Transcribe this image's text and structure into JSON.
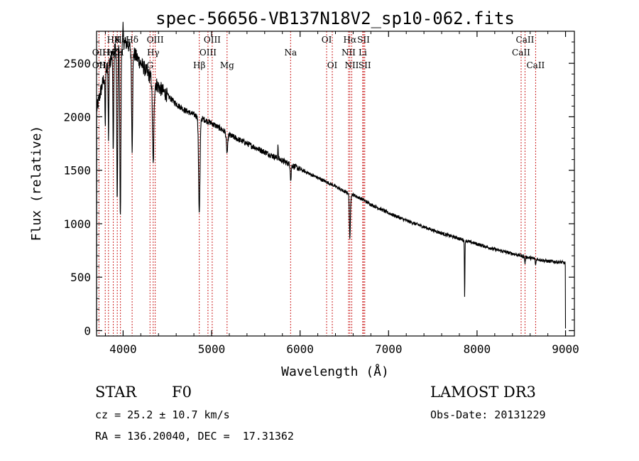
{
  "chart_data": {
    "type": "line",
    "title": "spec-56656-VB137N18V2_sp10-062.fits",
    "xlabel": "Wavelength (Å)",
    "ylabel": "Flux (relative)",
    "xlim": [
      3700,
      9100
    ],
    "ylim": [
      -50,
      2800
    ],
    "xticks": [
      4000,
      5000,
      6000,
      7000,
      8000,
      9000
    ],
    "yticks": [
      0,
      500,
      1000,
      1500,
      2000,
      2500
    ],
    "xtick_labels": [
      "4000",
      "5000",
      "6000",
      "7000",
      "8000",
      "9000"
    ],
    "ytick_labels": [
      "0",
      "500",
      "1000",
      "1500",
      "2000",
      "2500"
    ],
    "line_color": "#000000",
    "marker_color": "#cc2222",
    "continuum": [
      [
        3700,
        2060
      ],
      [
        3750,
        2250
      ],
      [
        3800,
        2420
      ],
      [
        3850,
        2540
      ],
      [
        3900,
        2620
      ],
      [
        3950,
        2680
      ],
      [
        4000,
        2700
      ],
      [
        4050,
        2680
      ],
      [
        4100,
        2620
      ],
      [
        4150,
        2560
      ],
      [
        4200,
        2500
      ],
      [
        4300,
        2380
      ],
      [
        4400,
        2280
      ],
      [
        4500,
        2200
      ],
      [
        4600,
        2120
      ],
      [
        4700,
        2060
      ],
      [
        4800,
        2020
      ],
      [
        4900,
        1980
      ],
      [
        5000,
        1940
      ],
      [
        5100,
        1890
      ],
      [
        5200,
        1830
      ],
      [
        5300,
        1790
      ],
      [
        5400,
        1750
      ],
      [
        5500,
        1710
      ],
      [
        5600,
        1670
      ],
      [
        5700,
        1630
      ],
      [
        5800,
        1590
      ],
      [
        5900,
        1550
      ],
      [
        6000,
        1510
      ],
      [
        6100,
        1470
      ],
      [
        6200,
        1430
      ],
      [
        6300,
        1390
      ],
      [
        6400,
        1350
      ],
      [
        6500,
        1300
      ],
      [
        6600,
        1270
      ],
      [
        6700,
        1230
      ],
      [
        6800,
        1180
      ],
      [
        6900,
        1140
      ],
      [
        7000,
        1100
      ],
      [
        7200,
        1030
      ],
      [
        7400,
        970
      ],
      [
        7600,
        910
      ],
      [
        7800,
        860
      ],
      [
        8000,
        810
      ],
      [
        8200,
        760
      ],
      [
        8400,
        720
      ],
      [
        8600,
        680
      ],
      [
        8800,
        650
      ],
      [
        8950,
        640
      ],
      [
        9000,
        630
      ]
    ],
    "absorption_lines": [
      {
        "center": 3934,
        "depth": 1450,
        "width": 6
      },
      {
        "center": 3969,
        "depth": 1650,
        "width": 6
      },
      {
        "center": 3889,
        "depth": 900,
        "width": 5
      },
      {
        "center": 3835,
        "depth": 700,
        "width": 4
      },
      {
        "center": 3798,
        "depth": 500,
        "width": 4
      },
      {
        "center": 4102,
        "depth": 900,
        "width": 6
      },
      {
        "center": 4340,
        "depth": 800,
        "width": 8
      },
      {
        "center": 4861,
        "depth": 900,
        "width": 8
      },
      {
        "center": 5175,
        "depth": 180,
        "width": 8
      },
      {
        "center": 5895,
        "depth": 150,
        "width": 5
      },
      {
        "center": 6563,
        "depth": 420,
        "width": 6
      },
      {
        "center": 7860,
        "depth": 520,
        "width": 3
      },
      {
        "center": 8542,
        "depth": 60,
        "width": 4
      },
      {
        "center": 8662,
        "depth": 60,
        "width": 4
      }
    ],
    "emission_spikes": [
      {
        "center": 4000,
        "height": 120,
        "width": 3
      },
      {
        "center": 5750,
        "height": 160,
        "width": 2
      }
    ],
    "spectral_lines": [
      {
        "label": "H8",
        "wavelength": 3889,
        "tier": 0
      },
      {
        "label": "K",
        "wavelength": 3934,
        "tier": 0
      },
      {
        "label": "Hε",
        "wavelength": 3970,
        "tier": 0
      },
      {
        "label": "Hδ",
        "wavelength": 4102,
        "tier": 0
      },
      {
        "label": "OIII",
        "wavelength": 4363,
        "tier": 0
      },
      {
        "label": "OIII",
        "wavelength": 5007,
        "tier": 0
      },
      {
        "label": "OI",
        "wavelength": 6300,
        "tier": 0
      },
      {
        "label": "Hα",
        "wavelength": 6563,
        "tier": 0
      },
      {
        "label": "SII",
        "wavelength": 6717,
        "tier": 0
      },
      {
        "label": "CaII",
        "wavelength": 8542,
        "tier": 0
      },
      {
        "label": "OII",
        "wavelength": 3727,
        "tier": 1
      },
      {
        "label": "Hη",
        "wavelength": 3835,
        "tier": 1
      },
      {
        "label": "Hζ",
        "wavelength": 3889,
        "tier": 1
      },
      {
        "label": "Ca",
        "wavelength": 3934,
        "tier": 1
      },
      {
        "label": "H",
        "wavelength": 3969,
        "tier": 1
      },
      {
        "label": "Hγ",
        "wavelength": 4340,
        "tier": 1
      },
      {
        "label": "OIII",
        "wavelength": 4959,
        "tier": 1
      },
      {
        "label": "Na",
        "wavelength": 5893,
        "tier": 1
      },
      {
        "label": "NII",
        "wavelength": 6548,
        "tier": 1
      },
      {
        "label": "Li",
        "wavelength": 6708,
        "tier": 1
      },
      {
        "label": "CaII",
        "wavelength": 8498,
        "tier": 1
      },
      {
        "label": "OII",
        "wavelength": 3727,
        "tier": 2
      },
      {
        "label": "Hθ",
        "wavelength": 3798,
        "tier": 2
      },
      {
        "label": "Hβ",
        "wavelength": 4861,
        "tier": 2
      },
      {
        "label": "G",
        "wavelength": 4304,
        "tier": 2
      },
      {
        "label": "Mg",
        "wavelength": 5175,
        "tier": 2
      },
      {
        "label": "OI",
        "wavelength": 6364,
        "tier": 2
      },
      {
        "label": "NII",
        "wavelength": 6584,
        "tier": 2
      },
      {
        "label": "SII",
        "wavelength": 6731,
        "tier": 2
      },
      {
        "label": "CaII",
        "wavelength": 8662,
        "tier": 2
      }
    ]
  },
  "info": {
    "object_class": "STAR",
    "subclass": "F0",
    "survey": "LAMOST DR3",
    "redshift_line": "cz = 25.2 ± 10.7 km/s",
    "obs_date_line": "Obs-Date: 20131229",
    "coords_line": "RA = 136.20040, DEC =  17.31362"
  }
}
